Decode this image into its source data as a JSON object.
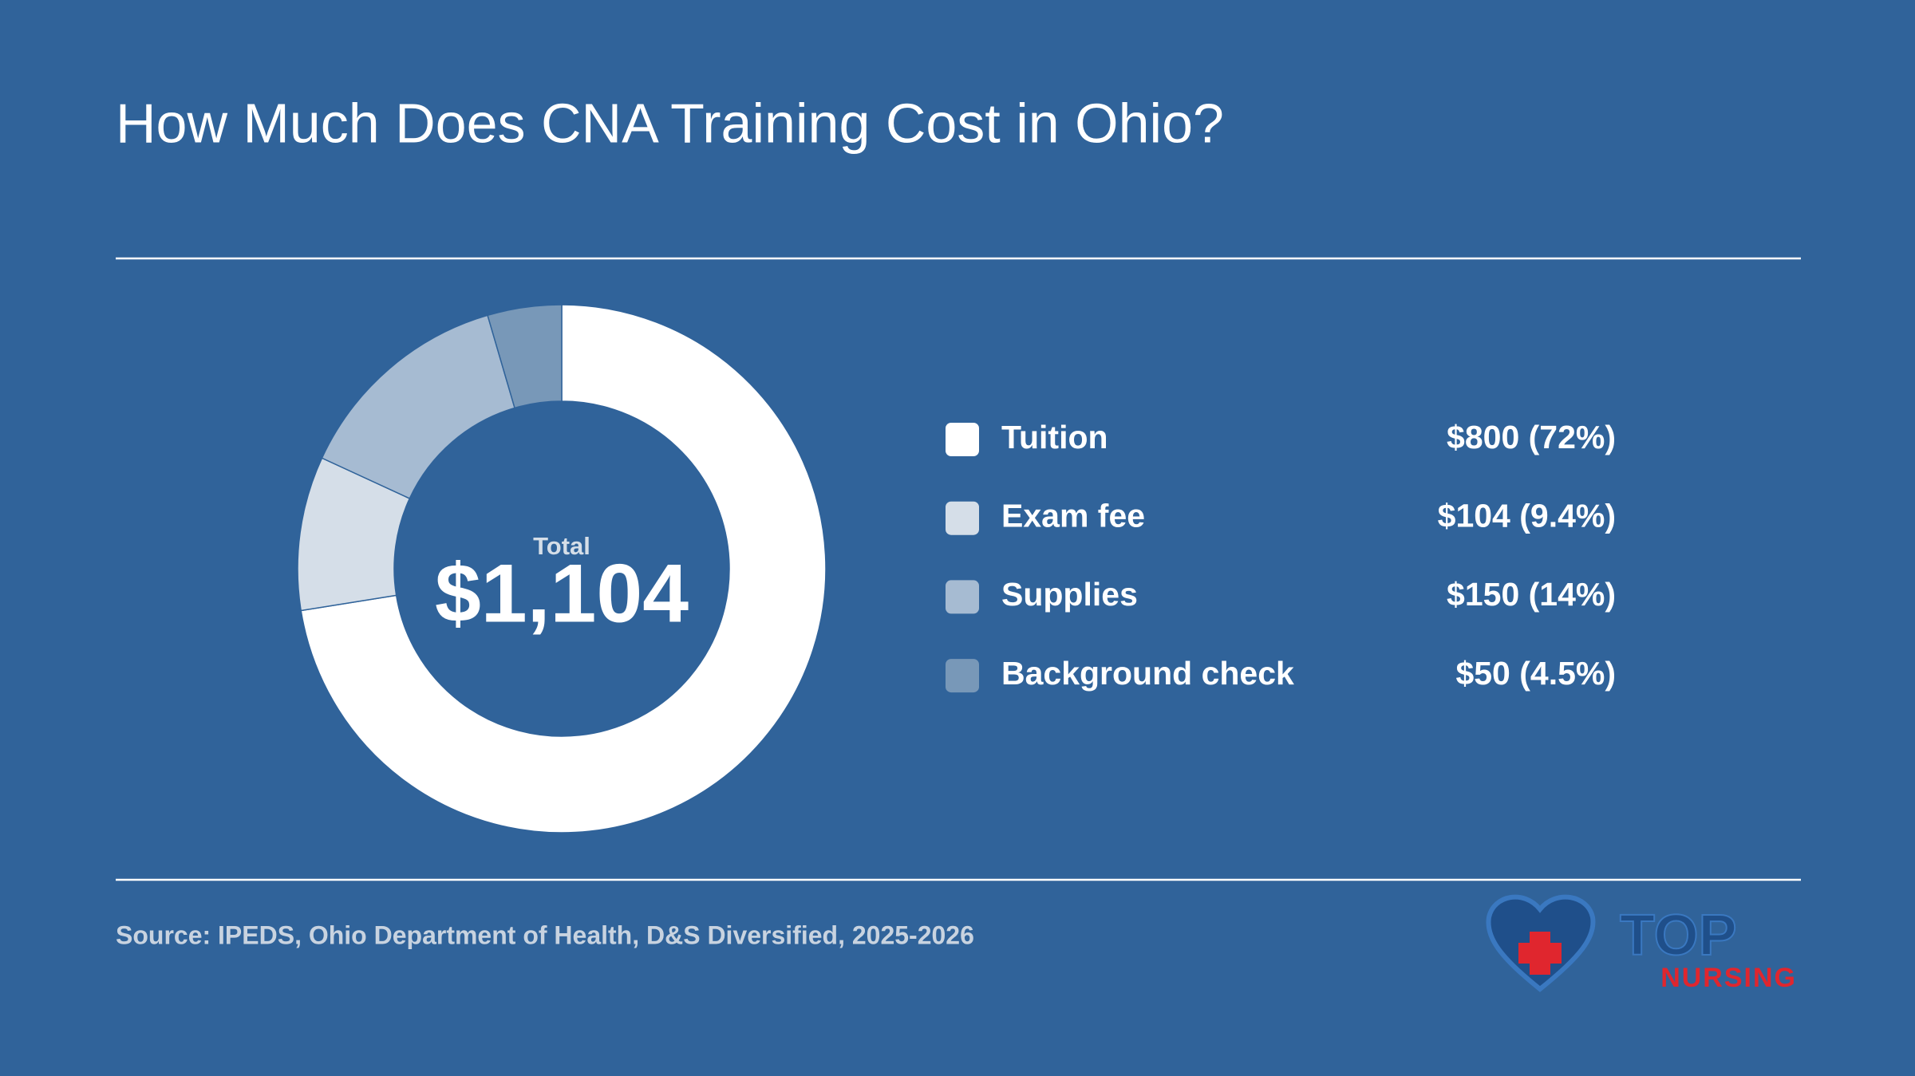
{
  "chart_data": {
    "type": "donut",
    "title": "How Much Does CNA Training Cost in Ohio?",
    "categories": [
      "Tuition",
      "Exam fee",
      "Supplies",
      "Background check"
    ],
    "values": [
      800,
      104,
      150,
      50
    ],
    "value_labels": [
      "$800 (72%)",
      "$104 (9.4%)",
      "$150 (14%)",
      "$50 (4.5%)"
    ],
    "colors": [
      "#ffffff",
      "#d5dee8",
      "#a6bbd2",
      "#7898b8"
    ],
    "center_caption": "Total",
    "center_label": "$1,104",
    "source": "Source: IPEDS, Ohio Department of Health, D&S Diversified, 2025-2026"
  },
  "logo": {
    "top": "TOP",
    "bottom": "NURSING"
  }
}
